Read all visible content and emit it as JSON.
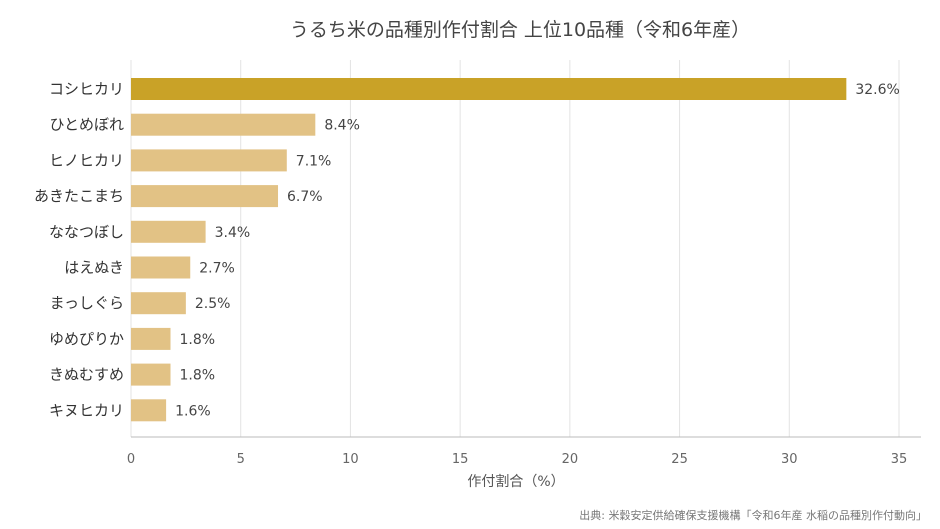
{
  "chart_data": {
    "type": "bar",
    "orientation": "horizontal",
    "title": "うるち米の品種別作付割合 上位10品種（令和6年産）",
    "xlabel": "作付割合（%）",
    "ylabel": "",
    "xlim": [
      0,
      35
    ],
    "xticks": [
      0,
      5,
      10,
      15,
      20,
      25,
      30,
      35
    ],
    "grid": true,
    "categories": [
      "コシヒカリ",
      "ひとめぼれ",
      "ヒノヒカリ",
      "あきたこまち",
      "ななつぼし",
      "はえぬき",
      "まっしぐら",
      "ゆめぴりか",
      "きぬむすめ",
      "キヌヒカリ"
    ],
    "values": [
      32.6,
      8.4,
      7.1,
      6.7,
      3.4,
      2.7,
      2.5,
      1.8,
      1.8,
      1.6
    ],
    "value_labels": [
      "32.6%",
      "8.4%",
      "7.1%",
      "6.7%",
      "3.4%",
      "2.7%",
      "2.5%",
      "1.8%",
      "1.8%",
      "1.6%"
    ],
    "colors": {
      "highlight": "#C9A227",
      "default": "#E2C285"
    },
    "highlight_index": 0,
    "source": "出典: 米穀安定供給確保支援機構「令和6年産 水稲の品種別作付動向」"
  }
}
